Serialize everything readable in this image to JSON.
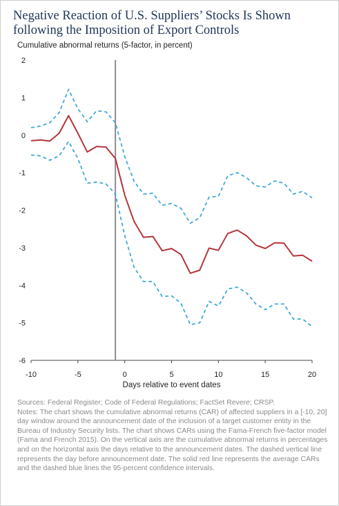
{
  "title_lines": [
    "Negative Reaction of U.S. Suppliers’ Stocks Is Shown",
    "following the Imposition of Export Controls"
  ],
  "notes": {
    "sources": "Sources: Federal Register; Code of Federal Regulations; FactSet Revere; CRSP.",
    "text": "Notes: The chart shows the cumulative abnormal returns (CAR) of affected suppliers in a [-10, 20] day window around the announcement date of the inclusion of a target customer entity in the Bureau of Industry Security lists. The chart shows CARs using the Fama-French five-factor model (Fama and French 2015). On the vertical axis are the cumulative abnormal returns in percentages and on the horizontal axis the days relative to the announcement dates. The dashed vertical line represents the day before announcement date. The solid red line represents the average CARs and the dashed blue lines the 95-percent confidence intervals."
  },
  "chart_data": {
    "type": "line",
    "ylabel": "Cumulative abnormal returns (5-factor, in percent)",
    "xlabel": "Days relative to event dates",
    "xlim": [
      -10,
      20
    ],
    "ylim": [
      -6,
      2
    ],
    "xticks": [
      -10,
      -5,
      0,
      5,
      10,
      15,
      20
    ],
    "yticks": [
      2,
      1,
      0,
      -1,
      -2,
      -3,
      -4,
      -5,
      -6
    ],
    "grid": false,
    "event_line_x": -1,
    "x": [
      -10,
      -9,
      -8,
      -7,
      -6,
      -5,
      -4,
      -3,
      -2,
      -1,
      0,
      1,
      2,
      3,
      4,
      5,
      6,
      7,
      8,
      9,
      10,
      11,
      12,
      13,
      14,
      15,
      16,
      17,
      18,
      19,
      20
    ],
    "series": [
      {
        "style": "solid",
        "color": "#b5343a",
        "values": [
          -0.15,
          -0.13,
          -0.16,
          0.05,
          0.52,
          0.05,
          -0.45,
          -0.3,
          -0.32,
          -0.62,
          -1.6,
          -2.3,
          -2.72,
          -2.7,
          -3.08,
          -3.02,
          -3.18,
          -3.68,
          -3.6,
          -3.01,
          -3.07,
          -2.62,
          -2.53,
          -2.68,
          -2.93,
          -3.02,
          -2.87,
          -2.88,
          -3.22,
          -3.2,
          -3.36
        ]
      },
      {
        "style": "dashed",
        "color": "#3fa9d9",
        "values": [
          0.2,
          0.24,
          0.33,
          0.6,
          1.22,
          0.7,
          0.36,
          0.65,
          0.62,
          0.33,
          -0.57,
          -1.23,
          -1.57,
          -1.55,
          -1.87,
          -1.82,
          -1.95,
          -2.35,
          -2.2,
          -1.65,
          -1.63,
          -1.08,
          -1.0,
          -1.13,
          -1.35,
          -1.38,
          -1.22,
          -1.28,
          -1.57,
          -1.5,
          -1.67
        ]
      },
      {
        "style": "dashed",
        "color": "#3fa9d9",
        "values": [
          -0.53,
          -0.55,
          -0.67,
          -0.55,
          -0.17,
          -0.62,
          -1.28,
          -1.25,
          -1.3,
          -1.57,
          -2.68,
          -3.52,
          -3.9,
          -3.9,
          -4.3,
          -4.28,
          -4.48,
          -5.05,
          -5.0,
          -4.43,
          -4.55,
          -4.1,
          -4.05,
          -4.2,
          -4.5,
          -4.65,
          -4.5,
          -4.5,
          -4.9,
          -4.9,
          -5.1
        ]
      }
    ]
  }
}
